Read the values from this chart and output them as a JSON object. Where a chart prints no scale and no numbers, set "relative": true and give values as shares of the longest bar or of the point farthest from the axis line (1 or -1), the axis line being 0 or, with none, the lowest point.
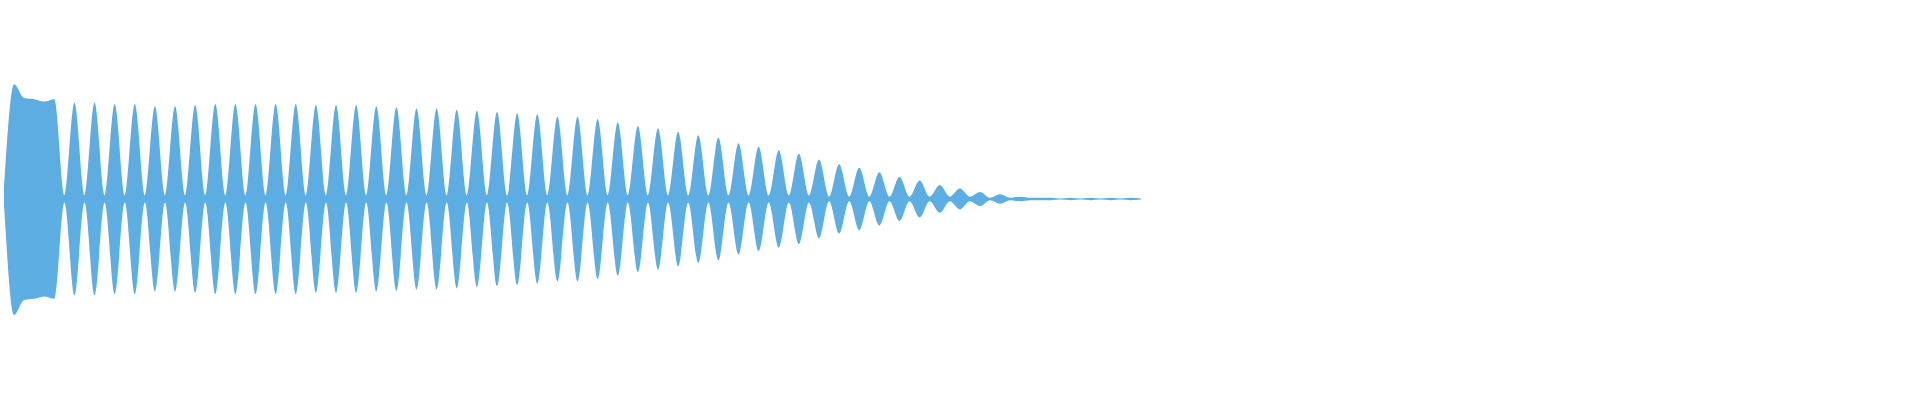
{
  "chart_data": {
    "type": "area",
    "relative": true,
    "categories": [
      null,
      null,
      null,
      null,
      null,
      null,
      null,
      null,
      null,
      null,
      null,
      null,
      null,
      null,
      null,
      null,
      null,
      null,
      null,
      null,
      null,
      null,
      null,
      null,
      null,
      null,
      null,
      null,
      null,
      null,
      null,
      null,
      null,
      null,
      null,
      null,
      null,
      null,
      null,
      null,
      null,
      null,
      null,
      null,
      null,
      null,
      null,
      null,
      null,
      null,
      null,
      null,
      null,
      null,
      null,
      null,
      null,
      null,
      null,
      null,
      null,
      null,
      null,
      null,
      null,
      null,
      null,
      null,
      null,
      null,
      null,
      null,
      null,
      null,
      null,
      null,
      null,
      null,
      null,
      null,
      null,
      null,
      null,
      null,
      null,
      null,
      null,
      null,
      null,
      null,
      null,
      null,
      null,
      null,
      null,
      null,
      null,
      null,
      null,
      null,
      null,
      null,
      null,
      null,
      null,
      null,
      null,
      null,
      null,
      null,
      null,
      null,
      null,
      null
    ],
    "series": [
      {
        "color": "#5dade2",
        "values": [
          0.05,
          0.99,
          0.87,
          0.86,
          0.84,
          0.86,
          0.03,
          0.83,
          0.03,
          0.83,
          0.03,
          0.82,
          0.03,
          0.82,
          0.03,
          0.8,
          0.03,
          0.8,
          0.03,
          0.81,
          0.03,
          0.82,
          0.03,
          0.82,
          0.03,
          0.82,
          0.03,
          0.82,
          0.03,
          0.82,
          0.03,
          0.81,
          0.03,
          0.81,
          0.03,
          0.81,
          0.03,
          0.8,
          0.03,
          0.79,
          0.03,
          0.78,
          0.03,
          0.78,
          0.03,
          0.77,
          0.03,
          0.76,
          0.03,
          0.75,
          0.03,
          0.74,
          0.03,
          0.73,
          0.03,
          0.71,
          0.03,
          0.71,
          0.03,
          0.69,
          0.03,
          0.66,
          0.03,
          0.63,
          0.03,
          0.61,
          0.03,
          0.58,
          0.03,
          0.55,
          0.03,
          0.53,
          0.03,
          0.48,
          0.03,
          0.45,
          0.03,
          0.42,
          0.03,
          0.39,
          0.03,
          0.34,
          0.02,
          0.3,
          0.02,
          0.27,
          0.02,
          0.23,
          0.02,
          0.19,
          0.02,
          0.16,
          0.02,
          0.12,
          0.02,
          0.09,
          0.02,
          0.06,
          0.01,
          0.04,
          0.01,
          0.02,
          0.01,
          0.01,
          0.01,
          0,
          0.01,
          0,
          0.01,
          0,
          0.01,
          0,
          0.01,
          0
        ]
      },
      {
        "color": "#5caee3",
        "values": [
          -0.05,
          -1,
          -0.87,
          -0.86,
          -0.84,
          -0.86,
          -0.03,
          -0.83,
          -0.03,
          -0.83,
          -0.03,
          -0.82,
          -0.03,
          -0.82,
          -0.03,
          -0.8,
          -0.03,
          -0.8,
          -0.03,
          -0.81,
          -0.03,
          -0.82,
          -0.03,
          -0.82,
          -0.03,
          -0.82,
          -0.03,
          -0.82,
          -0.03,
          -0.82,
          -0.03,
          -0.81,
          -0.03,
          -0.81,
          -0.03,
          -0.81,
          -0.03,
          -0.8,
          -0.03,
          -0.79,
          -0.03,
          -0.78,
          -0.03,
          -0.78,
          -0.03,
          -0.77,
          -0.03,
          -0.76,
          -0.03,
          -0.75,
          -0.03,
          -0.74,
          -0.03,
          -0.73,
          -0.03,
          -0.71,
          -0.03,
          -0.71,
          -0.03,
          -0.69,
          -0.03,
          -0.66,
          -0.03,
          -0.63,
          -0.03,
          -0.61,
          -0.03,
          -0.58,
          -0.03,
          -0.55,
          -0.03,
          -0.53,
          -0.03,
          -0.48,
          -0.03,
          -0.45,
          -0.03,
          -0.42,
          -0.03,
          -0.39,
          -0.03,
          -0.34,
          -0.02,
          -0.3,
          -0.02,
          -0.27,
          -0.02,
          -0.23,
          -0.02,
          -0.19,
          -0.02,
          -0.16,
          -0.02,
          -0.12,
          -0.02,
          -0.09,
          -0.02,
          -0.06,
          -0.01,
          -0.04,
          -0.01,
          -0.02,
          -0.01,
          -0.01,
          -0.01,
          0,
          -0.01,
          0,
          -0.01,
          0,
          -0.01,
          0,
          -0.01,
          0
        ]
      }
    ]
  }
}
